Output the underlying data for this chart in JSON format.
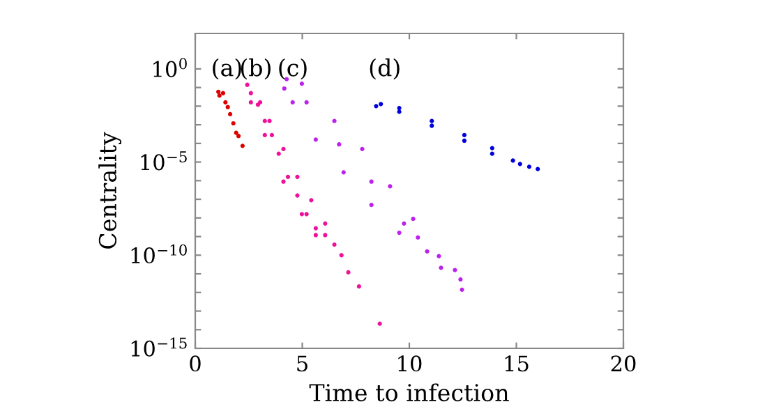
{
  "chart_data": {
    "type": "scatter",
    "xlabel": "Time to infection",
    "ylabel": "Centrality",
    "log": "y",
    "grid": false,
    "marker": "circle",
    "xlim": [
      0,
      20
    ],
    "xticks": [
      0,
      5,
      10,
      15,
      20
    ],
    "ylim": [
      1e-15,
      80
    ],
    "yticks": [
      {
        "value": 1,
        "label": "10$^{0}$"
      },
      {
        "value": 0.1,
        "label": null
      },
      {
        "value": 0.01,
        "label": null
      },
      {
        "value": 0.001,
        "label": null
      },
      {
        "value": 0.0001,
        "label": null
      },
      {
        "value": 1e-05,
        "label": "10$^{−5}$"
      },
      {
        "value": 1e-06,
        "label": null
      },
      {
        "value": 1e-07,
        "label": null
      },
      {
        "value": 1e-08,
        "label": null
      },
      {
        "value": 1e-09,
        "label": null
      },
      {
        "value": 1e-10,
        "label": "10$^{−10}$"
      },
      {
        "value": 1e-11,
        "label": null
      },
      {
        "value": 1e-12,
        "label": null
      },
      {
        "value": 1e-13,
        "label": null
      },
      {
        "value": 1e-14,
        "label": null
      },
      {
        "value": 1e-15,
        "label": "10$^{−15}$"
      }
    ],
    "series": [
      {
        "color": "#dd0000",
        "x": [
          1.08,
          1.13,
          1.3,
          1.41,
          1.52,
          1.63,
          1.78,
          1.91,
          2.02,
          2.21
        ],
        "values": [
          0.059,
          0.037,
          0.05,
          0.016,
          0.0089,
          0.0037,
          0.0012,
          0.00037,
          0.00025,
          7.4e-05
        ]
      },
      {
        "color": "#ee1199",
        "x": [
          2.43,
          2.6,
          2.93,
          3.25,
          3.58,
          3.9,
          4.33,
          4.77,
          5.2,
          5.63,
          6.07,
          6.5,
          6.83,
          7.15,
          7.65,
          8.62,
          3.03,
          3.47,
          4.12,
          4.77,
          5.42,
          6.07,
          2.6,
          3.25,
          4.12,
          4.98,
          5.63
        ],
        "values": [
          0.14,
          0.05,
          0.012,
          0.0016,
          0.00028,
          2.8e-05,
          1.6e-06,
          1.6e-07,
          1.6e-08,
          2.8e-09,
          1.2e-09,
          3.7e-10,
          1e-10,
          1.2e-11,
          2.1e-12,
          2.1e-14,
          0.016,
          0.0016,
          5e-05,
          1.6e-06,
          8.9e-08,
          5e-09,
          0.016,
          0.00028,
          8.9e-07,
          1.6e-08,
          1.2e-09
        ]
      },
      {
        "color": "#bb22ee",
        "x": [
          4.27,
          4.16,
          4.55,
          5.63,
          6.93,
          8.23,
          9.53,
          4.98,
          6.5,
          7.8,
          9.1,
          10.18,
          5.2,
          6.72,
          8.23,
          9.75,
          10.4,
          10.83,
          11.38,
          11.48,
          12.13,
          12.39,
          12.46
        ],
        "values": [
          0.28,
          0.089,
          0.016,
          0.00016,
          2.8e-06,
          5e-08,
          1.6e-09,
          0.16,
          0.0016,
          5e-05,
          5e-07,
          8.9e-09,
          0.016,
          8.9e-05,
          8.9e-07,
          5e-09,
          8.9e-10,
          1.6e-10,
          8.9e-11,
          2.1e-11,
          1.6e-11,
          5e-12,
          1.4e-12
        ]
      },
      {
        "color": "#0000dd",
        "x": [
          8.45,
          8.67,
          9.53,
          9.53,
          11.05,
          11.05,
          12.57,
          12.57,
          13.87,
          13.87,
          14.84,
          15.17,
          15.6,
          16.0
        ],
        "values": [
          0.01,
          0.013,
          0.005,
          0.0079,
          0.0016,
          0.00089,
          0.00028,
          0.00014,
          5.6e-05,
          2.8e-05,
          1.2e-05,
          7.9e-06,
          5.6e-06,
          4.2e-06
        ]
      }
    ],
    "annotations": [
      "(a)",
      "(b)",
      "(c)",
      "(d)"
    ]
  }
}
